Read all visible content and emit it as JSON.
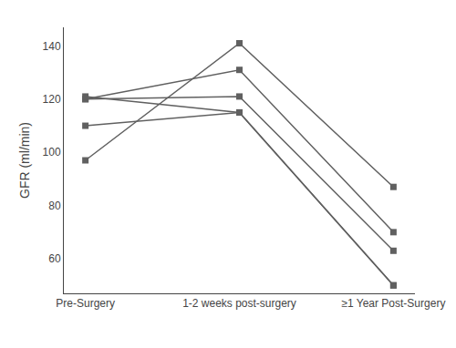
{
  "chart_data": {
    "type": "line",
    "categories": [
      "Pre-Surgery",
      "1-2 weeks post-surgery",
      "≥1 Year Post-Surgery"
    ],
    "series": [
      {
        "color": "#606060",
        "values": [
          97,
          141,
          87
        ]
      },
      {
        "color": "#606060",
        "values": [
          120,
          131,
          70
        ]
      },
      {
        "color": "#606060",
        "values": [
          120,
          121,
          63
        ]
      },
      {
        "color": "#606060",
        "values": [
          110,
          115,
          50
        ]
      },
      {
        "color": "#606060",
        "values": [
          121,
          115,
          50
        ]
      }
    ],
    "ylabel": "GFR (ml/min)",
    "ylim": [
      47,
      147
    ],
    "yticks": [
      60,
      80,
      100,
      120,
      140
    ],
    "marker": "square",
    "grid": false
  }
}
